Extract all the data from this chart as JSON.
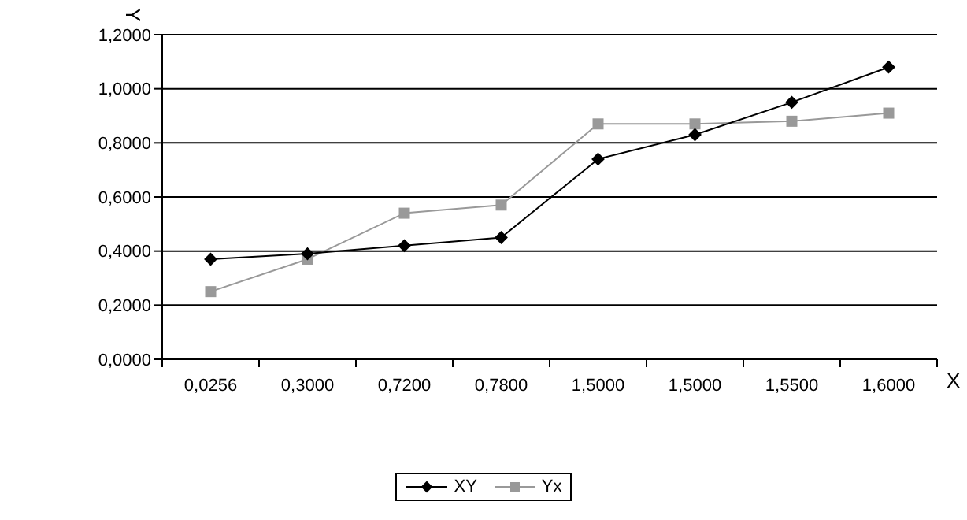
{
  "chart_data": {
    "type": "line",
    "xlabel": "X",
    "ylabel": "Y",
    "categories": [
      "0,0256",
      "0,3000",
      "0,7200",
      "0,7800",
      "1,5000",
      "1,5000",
      "1,5500",
      "1,6000"
    ],
    "series": [
      {
        "name": "XY",
        "color": "#000000",
        "marker": "diamond",
        "values": [
          0.37,
          0.39,
          0.42,
          0.45,
          0.74,
          0.83,
          0.95,
          1.08
        ]
      },
      {
        "name": "Yx",
        "color": "#999999",
        "marker": "square",
        "values": [
          0.25,
          0.37,
          0.54,
          0.57,
          0.87,
          0.87,
          0.88,
          0.91
        ]
      }
    ],
    "ylim": [
      0,
      1.2
    ],
    "yticks": [
      {
        "value": 0,
        "label": "0,0000"
      },
      {
        "value": 0.2,
        "label": "0,2000"
      },
      {
        "value": 0.4,
        "label": "0,4000"
      },
      {
        "value": 0.6,
        "label": "0,6000"
      },
      {
        "value": 0.8,
        "label": "0,8000"
      },
      {
        "value": 1,
        "label": "1,0000"
      },
      {
        "value": 1.2,
        "label": "1,2000"
      }
    ],
    "grid": "y",
    "legend": "bottom"
  }
}
